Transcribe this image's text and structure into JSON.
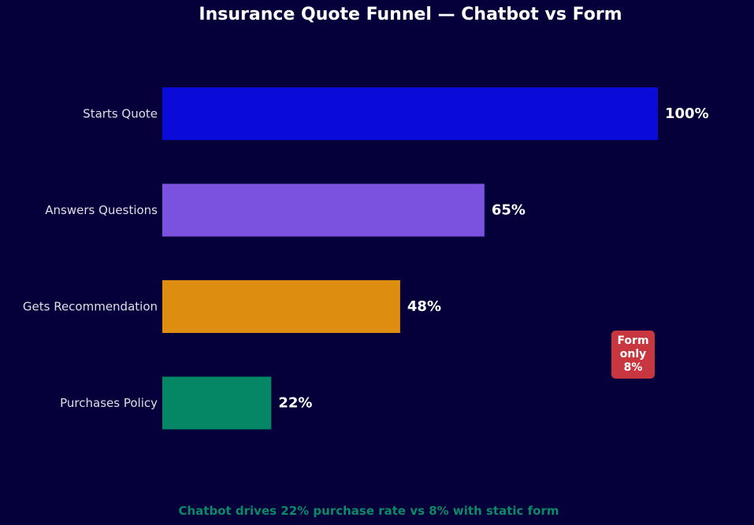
{
  "chart_data": {
    "type": "bar",
    "orientation": "horizontal",
    "title": "Insurance Quote Funnel — Chatbot vs Form",
    "categories": [
      "Starts Quote",
      "Answers Questions",
      "Gets Recommendation",
      "Purchases Policy"
    ],
    "values": [
      100,
      65,
      48,
      22
    ],
    "value_labels": [
      "100%",
      "65%",
      "48%",
      "22%"
    ],
    "colors": [
      "#0a0ad9",
      "#7b52e0",
      "#dd8e10",
      "#058766"
    ],
    "xlim": [
      0,
      100
    ],
    "grid": false,
    "xlabel": "",
    "ylabel": "",
    "annotation": {
      "lines": [
        "Form",
        "only",
        "8%"
      ],
      "color": "#c8363f"
    },
    "footer": "Chatbot drives 22% purchase rate vs 8% with static form"
  },
  "theme": {
    "background": "#05003a",
    "text": "#ffffff",
    "category_label": "#e0dce8",
    "footer_color": "#0a8a68"
  }
}
